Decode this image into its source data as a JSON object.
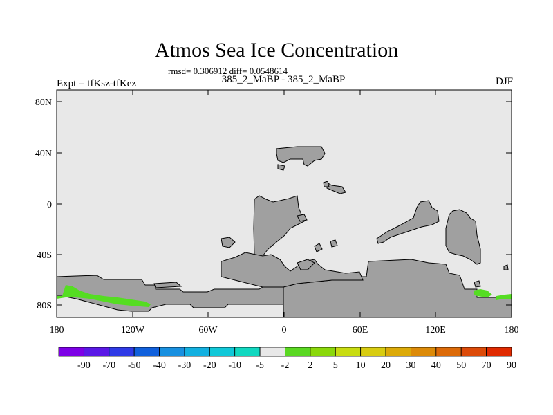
{
  "title": "Atmos Sea Ice Concentration",
  "stats": "rmsd= 0.306912 diff= 0.0548614",
  "expt_label": "Expt = tfKsz-tfKez",
  "cases_label": "385_2_MaBP - 385_2_MaBP",
  "season": "DJF",
  "colors": {
    "background_field": "#e8e8e8",
    "land": "#a0a0a0",
    "positive_diff": "#55dd22",
    "outline": "#000000"
  },
  "map": {
    "lat_ticks": [
      "80N",
      "40N",
      "0",
      "40S",
      "80S"
    ],
    "lon_ticks": [
      "180",
      "120W",
      "60W",
      "0",
      "60E",
      "120E",
      "180"
    ]
  },
  "colorbar": {
    "colors": [
      "#7d00e6",
      "#5a18e6",
      "#2f3ae6",
      "#1060dc",
      "#1890e0",
      "#12b0e0",
      "#10c8d8",
      "#10d8c0",
      "#e8e8e8",
      "#5ad822",
      "#8ad80a",
      "#c8dc10",
      "#d8cc10",
      "#dcaa08",
      "#dc8a08",
      "#dc6a08",
      "#dc4a08",
      "#e02a00"
    ],
    "labels": [
      "-90",
      "-70",
      "-50",
      "-40",
      "-30",
      "-20",
      "-10",
      "-5",
      "-2",
      "2",
      "5",
      "10",
      "20",
      "30",
      "40",
      "50",
      "70",
      "90"
    ]
  }
}
